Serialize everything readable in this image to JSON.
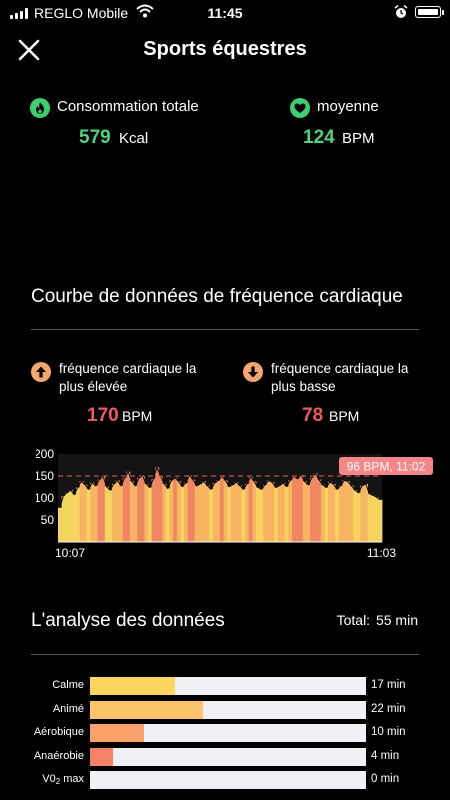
{
  "status_bar": {
    "carrier": "REGLO Mobile",
    "time": "11:45",
    "battery_level": 0.9
  },
  "header": {
    "title": "Sports équestres"
  },
  "summary": {
    "calories": {
      "label": "Consommation totale",
      "value": "579",
      "unit": "Kcal",
      "icon": "flame-icon"
    },
    "average": {
      "label": "moyenne",
      "value": "124",
      "unit": "BPM",
      "icon": "heart-icon"
    }
  },
  "heart_rate": {
    "title": "Courbe de données de fréquence cardiaque",
    "highest": {
      "label_line1": "fréquence cardiaque la",
      "label_line2": "plus élevée",
      "value": "170",
      "unit": "BPM",
      "icon": "arrow-up-icon"
    },
    "lowest": {
      "label_line1": "fréquence cardiaque la",
      "label_line2": "plus basse",
      "value": "78",
      "unit": "BPM",
      "icon": "arrow-down-icon"
    }
  },
  "chart_data": {
    "type": "area",
    "title": "",
    "xlabel": "",
    "ylabel": "",
    "ylim": [
      0,
      200
    ],
    "yticks": [
      50,
      100,
      150,
      200
    ],
    "x_start": "10:07",
    "x_end": "11:03",
    "reference_line": 150,
    "tooltip": "96 BPM, 11:02",
    "values": [
      78,
      105,
      112,
      118,
      108,
      124,
      138,
      130,
      120,
      135,
      128,
      142,
      150,
      126,
      118,
      132,
      140,
      128,
      146,
      160,
      138,
      128,
      146,
      150,
      132,
      124,
      144,
      170,
      150,
      132,
      122,
      140,
      146,
      138,
      126,
      134,
      152,
      142,
      128,
      132,
      138,
      128,
      120,
      134,
      140,
      150,
      140,
      126,
      130,
      136,
      128,
      120,
      132,
      148,
      138,
      124,
      120,
      130,
      140,
      136,
      124,
      128,
      134,
      126,
      140,
      150,
      144,
      152,
      138,
      130,
      146,
      156,
      142,
      130,
      124,
      136,
      132,
      120,
      128,
      140,
      138,
      128,
      118,
      112,
      128,
      132,
      110,
      106,
      102,
      96
    ],
    "colors": {
      "low": "#f5d55e",
      "mid": "#f7b463",
      "high": "#ee8762",
      "line": "#000000",
      "reference": "#f0595f",
      "tooltip": "#f4868a"
    }
  },
  "analysis": {
    "title": "L'analyse des données",
    "total_label": "Total:",
    "total_value": "55 min",
    "zones": [
      {
        "label": "Calme",
        "value": "17 min",
        "fraction": 0.309,
        "color": "#fbd55e"
      },
      {
        "label": "Animé",
        "value": "22 min",
        "fraction": 0.411,
        "color": "#fcc36a"
      },
      {
        "label": "Aérobique",
        "value": "10 min",
        "fraction": 0.196,
        "color": "#f9a06b"
      },
      {
        "label": "Anaérobie",
        "value": "4 min",
        "fraction": 0.083,
        "color": "#f58267"
      },
      {
        "label": "V0",
        "label_sub": "2",
        "label_suffix": " max",
        "value": "0 min",
        "fraction": 0.0,
        "color": "#f0595f"
      }
    ]
  }
}
